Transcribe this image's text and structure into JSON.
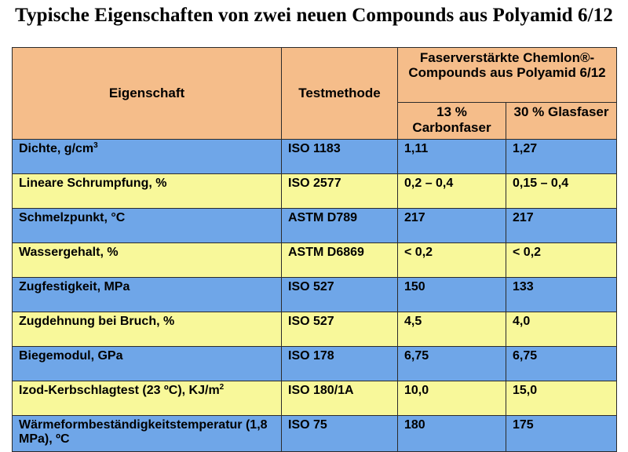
{
  "title": "Typische Eigenschaften von zwei neuen Compounds aus Polyamid 6/12",
  "table": {
    "header": {
      "property": "Eigenschaft",
      "method": "Testmethode",
      "group": "Faserverstärkte Chemlon®-Compounds aus Polyamid 6/12",
      "col1": "13 % Carbonfaser",
      "col2": "30 % Glasfaser"
    },
    "rows": [
      {
        "property": "Dichte, g/cm",
        "sup": "3",
        "method": "ISO 1183",
        "v1": "1,11",
        "v2": "1,27",
        "color": "blue"
      },
      {
        "property": "Lineare Schrumpfung, %",
        "sup": "",
        "method": "ISO 2577",
        "v1": "0,2 – 0,4",
        "v2": "0,15 – 0,4",
        "color": "yellow"
      },
      {
        "property": "Schmelzpunkt, °C",
        "sup": "",
        "method": "ASTM D789",
        "v1": "217",
        "v2": "217",
        "color": "blue"
      },
      {
        "property": "Wassergehalt, %",
        "sup": "",
        "method": "ASTM D6869",
        "v1": "< 0,2",
        "v2": "< 0,2",
        "color": "yellow"
      },
      {
        "property": "Zugfestigkeit, MPa",
        "sup": "",
        "method": "ISO 527",
        "v1": "150",
        "v2": "133",
        "color": "blue"
      },
      {
        "property": "Zugdehnung bei Bruch, %",
        "sup": "",
        "method": "ISO 527",
        "v1": "4,5",
        "v2": "4,0",
        "color": "yellow"
      },
      {
        "property": "Biegemodul, GPa",
        "sup": "",
        "method": "ISO 178",
        "v1": "6,75",
        "v2": "6,75",
        "color": "blue"
      },
      {
        "property": "Izod-Kerbschlagtest (23 ºC), KJ/m",
        "sup": "2",
        "method": "ISO 180/1A",
        "v1": "10,0",
        "v2": "15,0",
        "color": "yellow"
      },
      {
        "property": "Wärmeformbeständigkeitstemperatur (1,8 MPa), ºC",
        "sup": "",
        "method": "ISO 75",
        "v1": "180",
        "v2": "175",
        "color": "blue"
      }
    ]
  },
  "colors": {
    "header": "#f5bd8a",
    "blue_row": "#6fa6e8",
    "yellow_row": "#f8f89a"
  }
}
